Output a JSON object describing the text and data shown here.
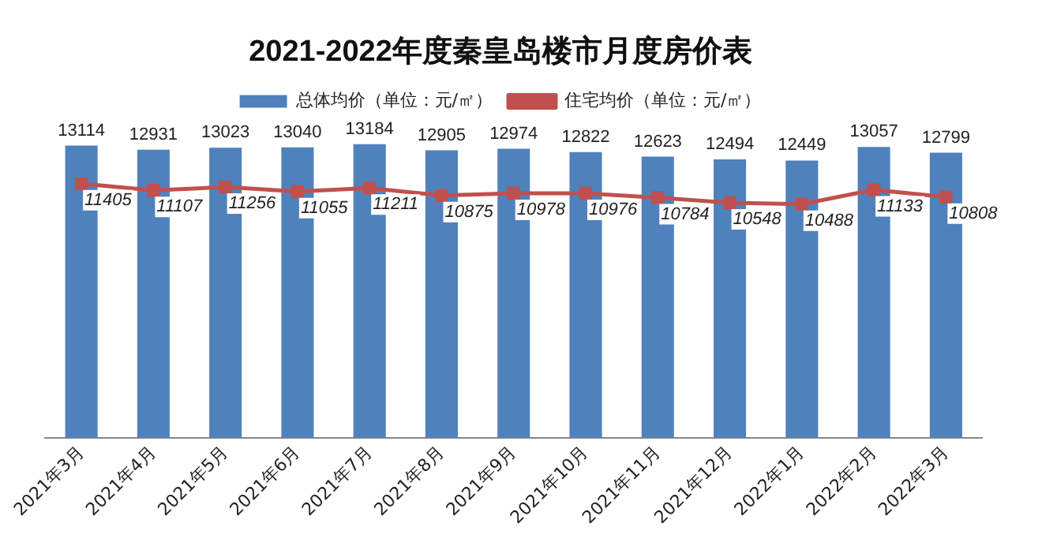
{
  "chart_data": {
    "type": "bar",
    "title": "2021-2022年度秦皇岛楼市月度房价表",
    "categories": [
      "2021年3月",
      "2021年4月",
      "2021年5月",
      "2021年6月",
      "2021年7月",
      "2021年8月",
      "2021年9月",
      "2021年10月",
      "2021年11月",
      "2021年12月",
      "2022年1月",
      "2022年2月",
      "2022年3月"
    ],
    "series": [
      {
        "name": "总体均价（单位：元/㎡）",
        "color": "#4f81bd",
        "values": [
          13114,
          12931,
          13023,
          13040,
          13184,
          12905,
          12974,
          12822,
          12623,
          12494,
          12449,
          13057,
          12799
        ]
      },
      {
        "name": "住宅均价（单位：元/㎡）",
        "type": "line",
        "color": "#c0504d",
        "marker": "square",
        "values": [
          11405,
          11107,
          11256,
          11055,
          11211,
          10875,
          10978,
          10976,
          10784,
          10548,
          10488,
          11133,
          10808
        ]
      }
    ],
    "data_labels": true,
    "legend": "top",
    "grid": false,
    "tick_labels": "x"
  }
}
